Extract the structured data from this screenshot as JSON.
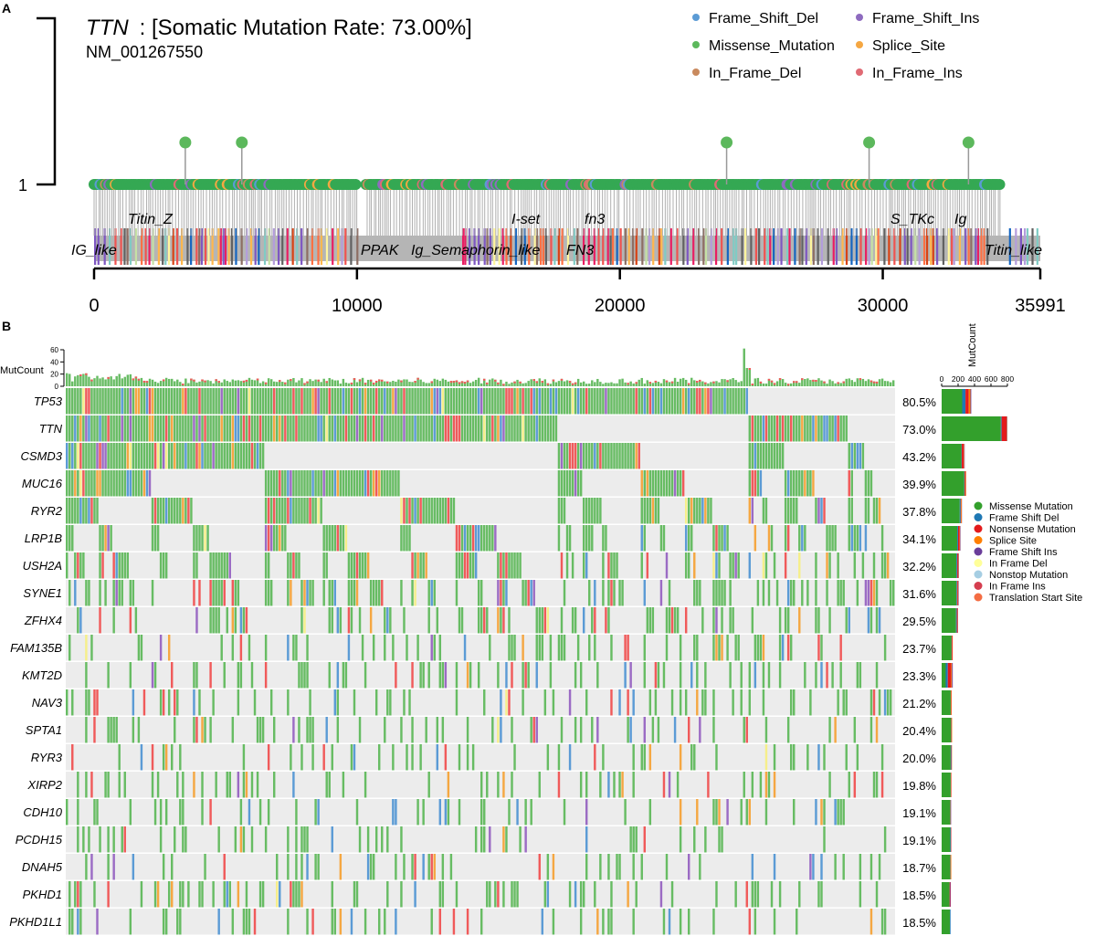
{
  "chart_data": [
    {
      "type": "lollipop",
      "panel_label": "A",
      "title_gene": "TTN",
      "title_rest": " : [Somatic Mutation Rate: 73.00%]",
      "subtitle": "NM_001267550",
      "y_tick_labels": [
        "1"
      ],
      "x_ticks": [
        0,
        10000,
        20000,
        30000,
        35991
      ],
      "xlim": [
        0,
        35991
      ],
      "taller_lollipop_positions": [
        3470,
        5620,
        24060,
        29480,
        33260
      ],
      "domain_labels": [
        "IG_like",
        "Titin_Z",
        "PPAK",
        "Ig_Semaphorin_like",
        "I-set",
        "FN3",
        "fn3",
        "S_TKc",
        "Ig",
        "Titin_like"
      ],
      "legend": [
        {
          "label": "Frame_Shift_Del",
          "color": "#5b9bd5"
        },
        {
          "label": "Frame_Shift_Ins",
          "color": "#8e6bbf"
        },
        {
          "label": "Missense_Mutation",
          "color": "#5cb85c"
        },
        {
          "label": "Splice_Site",
          "color": "#f5a742"
        },
        {
          "label": "In_Frame_Del",
          "color": "#c98a5e"
        },
        {
          "label": "In_Frame_Ins",
          "color": "#e06a74"
        }
      ],
      "legend_placement": "top-right"
    },
    {
      "type": "oncoprint",
      "panel_label": "B",
      "top_bar_label": "MutCount",
      "top_bar_ticks": [
        0,
        20,
        40,
        60
      ],
      "right_bar_label": "MutCount",
      "right_bar_ticks": [
        0,
        200,
        400,
        600,
        800
      ],
      "right_bar_xlim": [
        0,
        800
      ],
      "genes": [
        {
          "name": "TP53",
          "pct": "80.5%",
          "rate": 0.805,
          "counts": [
            250,
            40,
            40,
            20,
            10
          ]
        },
        {
          "name": "TTN",
          "pct": "73.0%",
          "rate": 0.73,
          "counts": [
            720,
            10,
            60,
            5,
            5
          ]
        },
        {
          "name": "CSMD3",
          "pct": "43.2%",
          "rate": 0.432,
          "counts": [
            240,
            5,
            25,
            5,
            5
          ]
        },
        {
          "name": "MUC16",
          "pct": "39.9%",
          "rate": 0.399,
          "counts": [
            275,
            5,
            10,
            8,
            2
          ]
        },
        {
          "name": "RYR2",
          "pct": "37.8%",
          "rate": 0.378,
          "counts": [
            220,
            12,
            5,
            8,
            2
          ]
        },
        {
          "name": "LRP1B",
          "pct": "34.1%",
          "rate": 0.341,
          "counts": [
            190,
            10,
            20,
            5,
            5
          ]
        },
        {
          "name": "USH2A",
          "pct": "32.2%",
          "rate": 0.322,
          "counts": [
            180,
            10,
            10,
            5,
            5
          ]
        },
        {
          "name": "SYNE1",
          "pct": "31.6%",
          "rate": 0.316,
          "counts": [
            180,
            8,
            10,
            5,
            5
          ]
        },
        {
          "name": "ZFHX4",
          "pct": "29.5%",
          "rate": 0.295,
          "counts": [
            175,
            10,
            10,
            3,
            2
          ]
        },
        {
          "name": "FAM135B",
          "pct": "23.7%",
          "rate": 0.237,
          "counts": [
            120,
            2,
            10,
            3,
            0
          ]
        },
        {
          "name": "KMT2D",
          "pct": "23.3%",
          "rate": 0.233,
          "counts": [
            50,
            25,
            40,
            10,
            10
          ]
        },
        {
          "name": "NAV3",
          "pct": "21.2%",
          "rate": 0.212,
          "counts": [
            110,
            2,
            5,
            5,
            0
          ]
        },
        {
          "name": "SPTA1",
          "pct": "20.4%",
          "rate": 0.204,
          "counts": [
            115,
            2,
            5,
            5,
            0
          ]
        },
        {
          "name": "RYR3",
          "pct": "20.0%",
          "rate": 0.2,
          "counts": [
            110,
            8,
            5,
            3,
            0
          ]
        },
        {
          "name": "XIRP2",
          "pct": "19.8%",
          "rate": 0.198,
          "counts": [
            110,
            2,
            5,
            2,
            0
          ]
        },
        {
          "name": "CDH10",
          "pct": "19.1%",
          "rate": 0.191,
          "counts": [
            105,
            3,
            5,
            0,
            3
          ]
        },
        {
          "name": "PCDH15",
          "pct": "19.1%",
          "rate": 0.191,
          "counts": [
            105,
            8,
            5,
            0,
            0
          ]
        },
        {
          "name": "DNAH5",
          "pct": "18.7%",
          "rate": 0.187,
          "counts": [
            105,
            3,
            5,
            5,
            0
          ]
        },
        {
          "name": "PKHD1",
          "pct": "18.5%",
          "rate": 0.185,
          "counts": [
            95,
            2,
            8,
            0,
            6
          ]
        },
        {
          "name": "PKHD1L1",
          "pct": "18.5%",
          "rate": 0.185,
          "counts": [
            100,
            8,
            0,
            0,
            0
          ]
        }
      ],
      "count_types": [
        "Missense Mutation",
        "Frame Shift Del",
        "Nonsense Mutation",
        "Splice Site",
        "Frame Shift Ins"
      ],
      "legend": [
        {
          "label": "Missense Mutation",
          "color": "#33a02c"
        },
        {
          "label": "Frame Shift Del",
          "color": "#1f78b4"
        },
        {
          "label": "Nonsense Mutation",
          "color": "#e31a1c"
        },
        {
          "label": "Splice Site",
          "color": "#ff7f00"
        },
        {
          "label": "Frame Shift Ins",
          "color": "#6a3d9a"
        },
        {
          "label": "In Frame Del",
          "color": "#ffff99"
        },
        {
          "label": "Nonstop Mutation",
          "color": "#a6cee3"
        },
        {
          "label": "In Frame Ins",
          "color": "#d53e4f"
        },
        {
          "label": "Translation Start Site",
          "color": "#f46d43"
        }
      ],
      "legend_placement": "right"
    }
  ]
}
